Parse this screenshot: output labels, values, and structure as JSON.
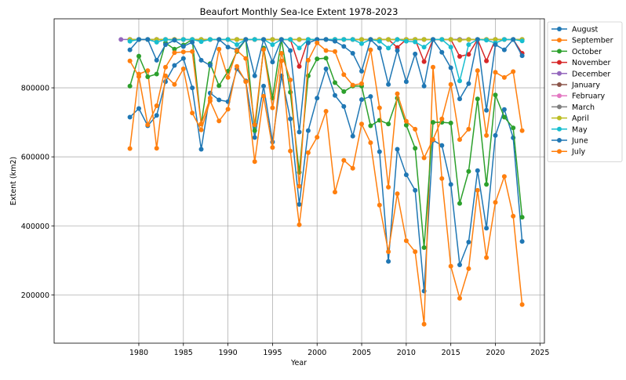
{
  "chart_data": {
    "type": "line",
    "title": "Beaufort Monthly Sea-Ice Extent 1978-2023",
    "xlabel": "Year",
    "ylabel": "Extent (km2)",
    "xlim": [
      1970.5,
      2025.5
    ],
    "ylim": [
      60000,
      1000000
    ],
    "xticks": [
      1980,
      1985,
      1990,
      1995,
      2000,
      2005,
      2010,
      2015,
      2020,
      2025
    ],
    "yticks": [
      200000,
      400000,
      600000,
      800000
    ],
    "xtick_labels": [
      "1980",
      "1985",
      "1990",
      "1995",
      "2000",
      "2005",
      "2010",
      "2015",
      "2020",
      "2025"
    ],
    "ytick_labels": [
      "200000",
      "400000",
      "600000",
      "800000"
    ],
    "grid": true,
    "legend_position": "outside-right",
    "x_start": 1979,
    "series": [
      {
        "name": "August",
        "color": "#1f77b4",
        "values": [
          715000,
          740000,
          690000,
          720000,
          818000,
          865000,
          885000,
          800000,
          622000,
          785000,
          765000,
          760000,
          855000,
          820000,
          656000,
          805000,
          643000,
          835000,
          710000,
          462000,
          676000,
          770000,
          855000,
          778000,
          746000,
          660000,
          766000,
          775000,
          615000,
          297000,
          622000,
          548000,
          503000,
          211000,
          648000,
          633000,
          520000,
          287000,
          353000,
          560000,
          393000,
          662000,
          737000,
          655000,
          355000
        ]
      },
      {
        "name": "September",
        "color": "#ff7f0e",
        "values": [
          624000,
          840000,
          850000,
          625000,
          835000,
          810000,
          855000,
          727000,
          678000,
          762000,
          704000,
          738000,
          862000,
          818000,
          586000,
          776000,
          627000,
          878000,
          617000,
          403000,
          612000,
          657000,
          732000,
          498000,
          590000,
          567000,
          695000,
          641000,
          460000,
          325000,
          493000,
          357000,
          325000,
          115000,
          860000,
          537000,
          283000,
          190000,
          276000,
          503000,
          308000,
          468000,
          543000,
          428000,
          172000
        ]
      },
      {
        "name": "October",
        "color": "#2ca02c",
        "values": [
          805000,
          892000,
          832000,
          840000,
          930000,
          912000,
          924000,
          940000,
          695000,
          870000,
          806000,
          848000,
          905000,
          940000,
          676000,
          915000,
          770000,
          940000,
          787000,
          555000,
          835000,
          884000,
          886000,
          815000,
          789000,
          805000,
          805000,
          690000,
          706000,
          695000,
          770000,
          692000,
          625000,
          337000,
          700000,
          700000,
          698000,
          465000,
          558000,
          768000,
          520000,
          779000,
          715000,
          684000,
          425000
        ]
      },
      {
        "name": "November",
        "color": "#d62728",
        "values": [
          940000,
          940000,
          940000,
          940000,
          940000,
          940000,
          940000,
          940000,
          938000,
          940000,
          940000,
          940000,
          940000,
          940000,
          940000,
          940000,
          940000,
          940000,
          940000,
          862000,
          940000,
          940000,
          940000,
          940000,
          940000,
          940000,
          940000,
          940000,
          940000,
          940000,
          917000,
          940000,
          940000,
          876000,
          940000,
          940000,
          940000,
          891000,
          897000,
          940000,
          878000,
          940000,
          940000,
          940000,
          900000
        ]
      },
      {
        "name": "December",
        "color": "#9467bd",
        "values": [
          940000,
          940000,
          940000,
          940000,
          940000,
          940000,
          940000,
          940000,
          940000,
          940000,
          940000,
          940000,
          940000,
          940000,
          940000,
          940000,
          940000,
          940000,
          940000,
          940000,
          940000,
          940000,
          940000,
          940000,
          940000,
          940000,
          940000,
          940000,
          940000,
          940000,
          940000,
          940000,
          940000,
          940000,
          940000,
          940000,
          940000,
          940000,
          940000,
          940000,
          940000,
          940000,
          940000,
          940000,
          940000
        ]
      },
      {
        "name": "January",
        "color": "#8c564b",
        "values": [
          940000,
          940000,
          940000,
          940000,
          940000,
          940000,
          940000,
          940000,
          940000,
          940000,
          940000,
          940000,
          940000,
          940000,
          940000,
          940000,
          940000,
          940000,
          940000,
          940000,
          940000,
          940000,
          940000,
          940000,
          940000,
          940000,
          940000,
          940000,
          940000,
          940000,
          940000,
          940000,
          940000,
          940000,
          940000,
          940000,
          940000,
          940000,
          940000,
          940000,
          940000,
          940000,
          940000,
          940000,
          940000
        ]
      },
      {
        "name": "February",
        "color": "#e377c2",
        "values": [
          940000,
          940000,
          940000,
          940000,
          940000,
          940000,
          940000,
          940000,
          940000,
          940000,
          940000,
          940000,
          940000,
          940000,
          940000,
          940000,
          940000,
          940000,
          940000,
          940000,
          940000,
          940000,
          940000,
          940000,
          940000,
          940000,
          940000,
          940000,
          940000,
          940000,
          940000,
          940000,
          940000,
          940000,
          940000,
          940000,
          940000,
          940000,
          940000,
          940000,
          940000,
          940000,
          940000,
          940000,
          940000
        ]
      },
      {
        "name": "March",
        "color": "#7f7f7f",
        "values": [
          940000,
          940000,
          940000,
          940000,
          940000,
          940000,
          940000,
          940000,
          940000,
          940000,
          940000,
          940000,
          940000,
          940000,
          940000,
          940000,
          940000,
          940000,
          940000,
          940000,
          940000,
          940000,
          940000,
          940000,
          940000,
          940000,
          940000,
          940000,
          940000,
          940000,
          940000,
          940000,
          940000,
          940000,
          940000,
          940000,
          940000,
          940000,
          940000,
          940000,
          940000,
          940000,
          940000,
          940000,
          940000
        ]
      },
      {
        "name": "April",
        "color": "#bcbd22",
        "values": [
          940000,
          940000,
          940000,
          940000,
          940000,
          940000,
          940000,
          940000,
          940000,
          940000,
          940000,
          940000,
          940000,
          940000,
          940000,
          940000,
          940000,
          940000,
          940000,
          940000,
          940000,
          940000,
          940000,
          940000,
          940000,
          940000,
          940000,
          940000,
          940000,
          940000,
          940000,
          940000,
          940000,
          940000,
          940000,
          940000,
          940000,
          938000,
          940000,
          940000,
          940000,
          940000,
          940000,
          940000,
          940000
        ]
      },
      {
        "name": "May",
        "color": "#17becf",
        "values": [
          935000,
          940000,
          940000,
          932000,
          940000,
          938000,
          940000,
          940000,
          934000,
          940000,
          940000,
          940000,
          925000,
          940000,
          940000,
          940000,
          925000,
          940000,
          940000,
          915000,
          940000,
          940000,
          940000,
          940000,
          940000,
          940000,
          928000,
          940000,
          935000,
          915000,
          940000,
          935000,
          933000,
          918000,
          940000,
          940000,
          918000,
          820000,
          925000,
          940000,
          938000,
          930000,
          940000,
          940000,
          936000
        ]
      },
      {
        "name": "June",
        "color": "#1f77b4",
        "values": [
          910000,
          940000,
          940000,
          880000,
          925000,
          938000,
          920000,
          932000,
          880000,
          865000,
          940000,
          918000,
          910000,
          940000,
          835000,
          940000,
          875000,
          940000,
          908000,
          672000,
          930000,
          940000,
          940000,
          935000,
          920000,
          900000,
          848000,
          940000,
          915000,
          810000,
          908000,
          818000,
          898000,
          805000,
          940000,
          903000,
          858000,
          768000,
          812000,
          940000,
          735000,
          925000,
          910000,
          940000,
          893000
        ]
      },
      {
        "name": "July",
        "color": "#ff7f0e",
        "values": [
          878000,
          833000,
          693000,
          748000,
          860000,
          902000,
          904000,
          905000,
          695000,
          770000,
          912000,
          830000,
          908000,
          885000,
          693000,
          911000,
          742000,
          900000,
          823000,
          515000,
          880000,
          930000,
          908000,
          905000,
          838000,
          808000,
          812000,
          910000,
          742000,
          512000,
          783000,
          703000,
          680000,
          597000,
          650000,
          710000,
          810000,
          650000,
          680000,
          850000,
          662000,
          845000,
          830000,
          847000,
          676000
        ]
      }
    ],
    "extra_points": [
      {
        "series": "December",
        "x": 1978,
        "y": 940000
      }
    ]
  }
}
